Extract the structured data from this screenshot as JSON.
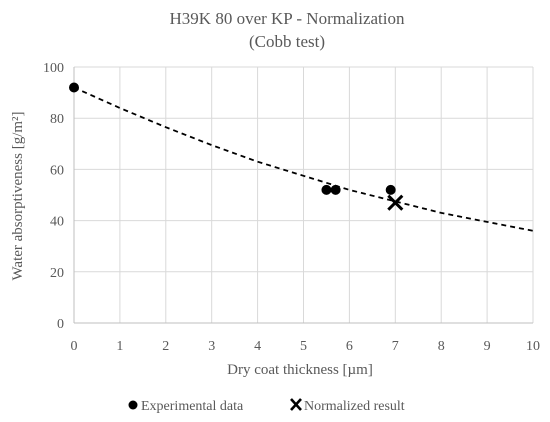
{
  "chart_data": {
    "type": "scatter",
    "title": "H39K 80 over KP - Normalization",
    "subtitle": "(Cobb test)",
    "xlabel": "Dry coat thickness [µm]",
    "ylabel": "Water absorptiveness [g/m²]",
    "xlim": [
      0,
      10
    ],
    "ylim": [
      0,
      100
    ],
    "xticks": [
      0,
      1,
      2,
      3,
      4,
      5,
      6,
      7,
      8,
      9,
      10
    ],
    "yticks": [
      0,
      20,
      40,
      60,
      80,
      100
    ],
    "grid": true,
    "legend_position": "bottom",
    "series": [
      {
        "name": "Experimental data",
        "marker": "circle",
        "color": "#000000",
        "points": [
          {
            "x": 0.0,
            "y": 92
          },
          {
            "x": 5.5,
            "y": 52
          },
          {
            "x": 5.7,
            "y": 52
          },
          {
            "x": 6.9,
            "y": 52
          }
        ]
      },
      {
        "name": "Normalized result",
        "marker": "x",
        "color": "#000000",
        "points": [
          {
            "x": 7.0,
            "y": 47
          }
        ]
      }
    ],
    "trendline": {
      "style": "dashed",
      "color": "#000000",
      "points": [
        {
          "x": 0,
          "y": 92
        },
        {
          "x": 1,
          "y": 84
        },
        {
          "x": 2,
          "y": 76.5
        },
        {
          "x": 3,
          "y": 69.5
        },
        {
          "x": 4,
          "y": 63
        },
        {
          "x": 5,
          "y": 57.5
        },
        {
          "x": 6,
          "y": 52
        },
        {
          "x": 7,
          "y": 47.5
        },
        {
          "x": 8,
          "y": 43
        },
        {
          "x": 9,
          "y": 39.5
        },
        {
          "x": 10,
          "y": 36
        }
      ]
    }
  },
  "colors": {
    "text": "#595959",
    "grid": "#d9d9d9",
    "axis": "#bfbfbf",
    "marker": "#000000"
  }
}
